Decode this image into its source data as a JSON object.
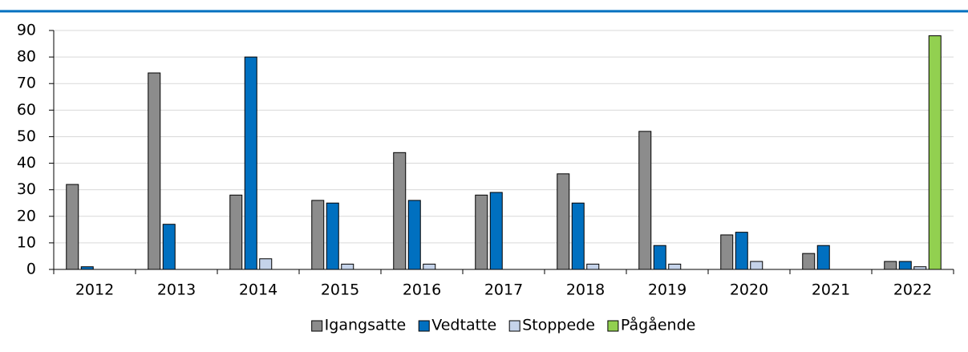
{
  "chart_data": {
    "type": "bar",
    "categories": [
      "2012",
      "2013",
      "2014",
      "2015",
      "2016",
      "2017",
      "2018",
      "2019",
      "2020",
      "2021",
      "2022"
    ],
    "series": [
      {
        "name": "Igangsatte",
        "color": "#8c8c8c",
        "values": [
          32,
          74,
          28,
          26,
          44,
          28,
          36,
          52,
          13,
          6,
          3
        ]
      },
      {
        "name": "Vedtatte",
        "color": "#0070c0",
        "values": [
          1,
          17,
          80,
          25,
          26,
          29,
          25,
          9,
          14,
          9,
          3
        ]
      },
      {
        "name": "Stoppede",
        "color": "#c5d3ea",
        "values": [
          0,
          0,
          4,
          2,
          2,
          0,
          2,
          2,
          3,
          0,
          1
        ]
      },
      {
        "name": "Pågående",
        "color": "#92d050",
        "values": [
          0,
          0,
          0,
          0,
          0,
          0,
          0,
          0,
          0,
          0,
          88
        ]
      }
    ],
    "ylim": [
      0,
      90
    ],
    "yticks": [
      0,
      10,
      20,
      30,
      40,
      50,
      60,
      70,
      80,
      90
    ],
    "grid": true,
    "legend": "bottom"
  }
}
